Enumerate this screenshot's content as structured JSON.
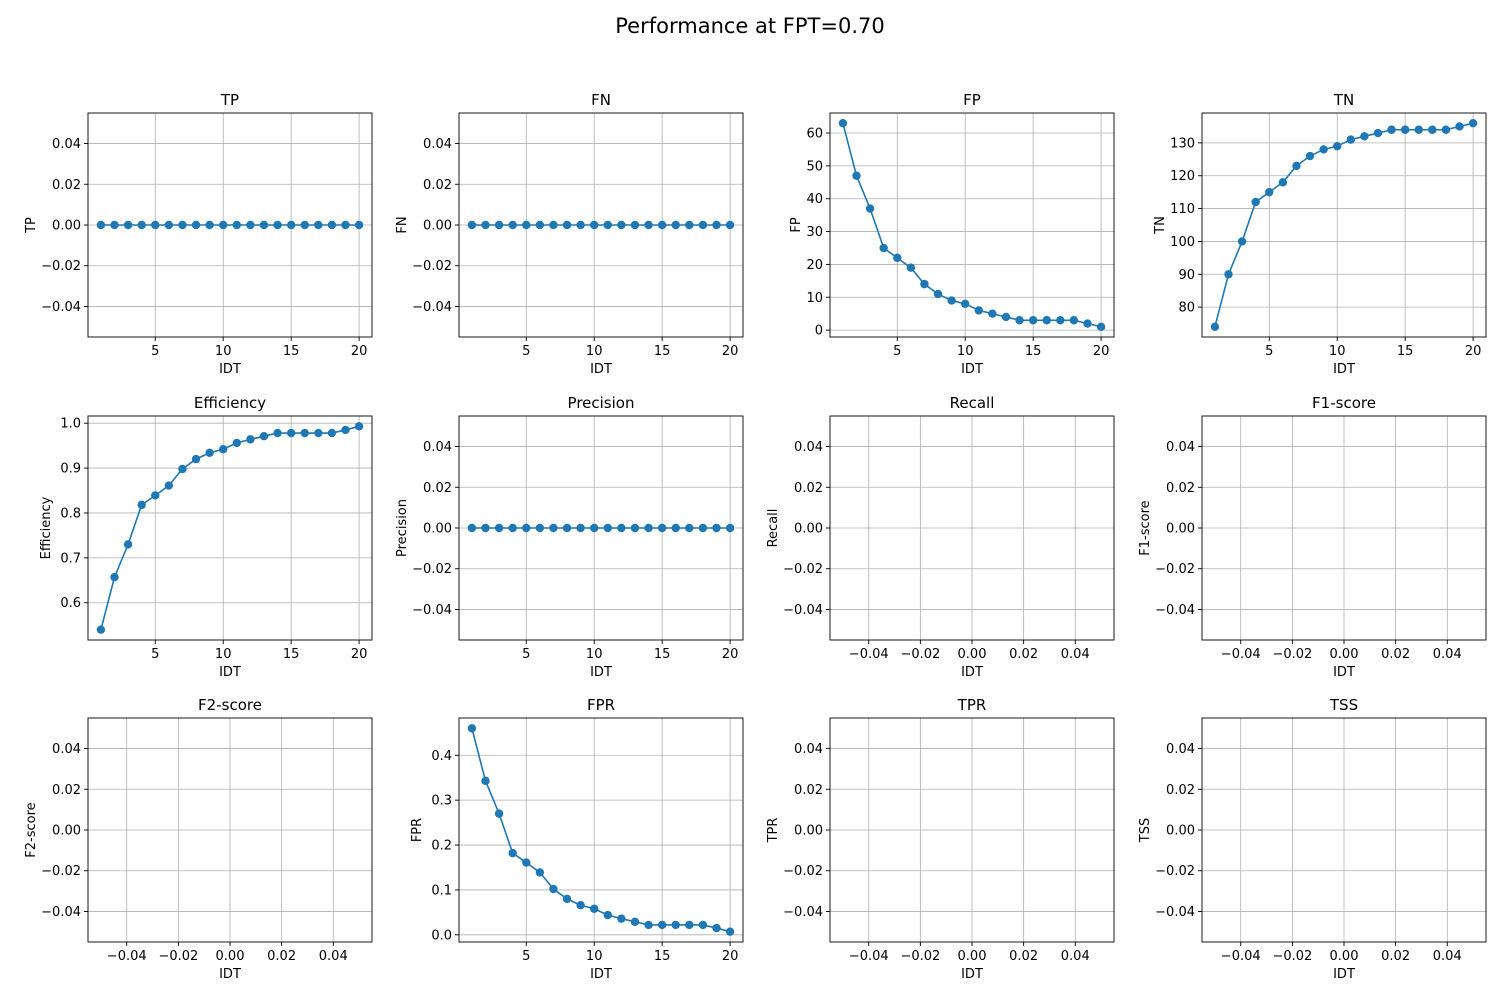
{
  "figure": {
    "suptitle": "Performance at FPT=0.70"
  },
  "style": {
    "line_color": "#1f77b4",
    "grid_color": "#b0b0b0"
  },
  "chart_data": [
    {
      "type": "line",
      "title": "TP",
      "xlabel": "IDT",
      "ylabel": "TP",
      "x": [
        1,
        2,
        3,
        4,
        5,
        6,
        7,
        8,
        9,
        10,
        11,
        12,
        13,
        14,
        15,
        16,
        17,
        18,
        19,
        20
      ],
      "series": [
        {
          "values": [
            0,
            0,
            0,
            0,
            0,
            0,
            0,
            0,
            0,
            0,
            0,
            0,
            0,
            0,
            0,
            0,
            0,
            0,
            0,
            0
          ]
        }
      ],
      "xlim": [
        0.05,
        20.95
      ],
      "ylim": [
        -0.055,
        0.055
      ],
      "xticks": [
        5,
        10,
        15,
        20
      ],
      "xtick_labels": [
        "5",
        "10",
        "15",
        "20"
      ],
      "yticks": [
        -0.04,
        -0.02,
        0,
        0.02,
        0.04
      ],
      "ytick_labels": [
        "−0.04",
        "−0.02",
        "0.00",
        "0.02",
        "0.04"
      ],
      "grid": true
    },
    {
      "type": "line",
      "title": "FN",
      "xlabel": "IDT",
      "ylabel": "FN",
      "x": [
        1,
        2,
        3,
        4,
        5,
        6,
        7,
        8,
        9,
        10,
        11,
        12,
        13,
        14,
        15,
        16,
        17,
        18,
        19,
        20
      ],
      "series": [
        {
          "values": [
            0,
            0,
            0,
            0,
            0,
            0,
            0,
            0,
            0,
            0,
            0,
            0,
            0,
            0,
            0,
            0,
            0,
            0,
            0,
            0
          ]
        }
      ],
      "xlim": [
        0.05,
        20.95
      ],
      "ylim": [
        -0.055,
        0.055
      ],
      "xticks": [
        5,
        10,
        15,
        20
      ],
      "xtick_labels": [
        "5",
        "10",
        "15",
        "20"
      ],
      "yticks": [
        -0.04,
        -0.02,
        0,
        0.02,
        0.04
      ],
      "ytick_labels": [
        "−0.04",
        "−0.02",
        "0.00",
        "0.02",
        "0.04"
      ],
      "grid": true
    },
    {
      "type": "line",
      "title": "FP",
      "xlabel": "IDT",
      "ylabel": "FP",
      "x": [
        1,
        2,
        3,
        4,
        5,
        6,
        7,
        8,
        9,
        10,
        11,
        12,
        13,
        14,
        15,
        16,
        17,
        18,
        19,
        20
      ],
      "series": [
        {
          "values": [
            63,
            47,
            37,
            25,
            22,
            19,
            14,
            11,
            9,
            8,
            6,
            5,
            4,
            3,
            3,
            3,
            3,
            3,
            2,
            1
          ]
        }
      ],
      "xlim": [
        0.05,
        20.95
      ],
      "ylim": [
        -2.1,
        66.1
      ],
      "xticks": [
        5,
        10,
        15,
        20
      ],
      "xtick_labels": [
        "5",
        "10",
        "15",
        "20"
      ],
      "yticks": [
        0,
        10,
        20,
        30,
        40,
        50,
        60
      ],
      "ytick_labels": [
        "0",
        "10",
        "20",
        "30",
        "40",
        "50",
        "60"
      ],
      "grid": true
    },
    {
      "type": "line",
      "title": "TN",
      "xlabel": "IDT",
      "ylabel": "TN",
      "x": [
        1,
        2,
        3,
        4,
        5,
        6,
        7,
        8,
        9,
        10,
        11,
        12,
        13,
        14,
        15,
        16,
        17,
        18,
        19,
        20
      ],
      "series": [
        {
          "values": [
            74,
            90,
            100,
            112,
            115,
            118,
            123,
            126,
            128,
            129,
            131,
            132,
            133,
            134,
            134,
            134,
            134,
            134,
            135,
            136
          ]
        }
      ],
      "xlim": [
        0.05,
        20.95
      ],
      "ylim": [
        70.9,
        139.1
      ],
      "xticks": [
        5,
        10,
        15,
        20
      ],
      "xtick_labels": [
        "5",
        "10",
        "15",
        "20"
      ],
      "yticks": [
        80,
        90,
        100,
        110,
        120,
        130
      ],
      "ytick_labels": [
        "80",
        "90",
        "100",
        "110",
        "120",
        "130"
      ],
      "grid": true
    },
    {
      "type": "line",
      "title": "Efficiency",
      "xlabel": "IDT",
      "ylabel": "Efficiency",
      "x": [
        1,
        2,
        3,
        4,
        5,
        6,
        7,
        8,
        9,
        10,
        11,
        12,
        13,
        14,
        15,
        16,
        17,
        18,
        19,
        20
      ],
      "series": [
        {
          "values": [
            0.54,
            0.657,
            0.73,
            0.818,
            0.839,
            0.861,
            0.898,
            0.92,
            0.934,
            0.942,
            0.956,
            0.964,
            0.971,
            0.978,
            0.978,
            0.978,
            0.978,
            0.978,
            0.985,
            0.993
          ]
        }
      ],
      "xlim": [
        0.05,
        20.95
      ],
      "ylim": [
        0.517,
        1.016
      ],
      "xticks": [
        5,
        10,
        15,
        20
      ],
      "xtick_labels": [
        "5",
        "10",
        "15",
        "20"
      ],
      "yticks": [
        0.6,
        0.7,
        0.8,
        0.9,
        1.0
      ],
      "ytick_labels": [
        "0.6",
        "0.7",
        "0.8",
        "0.9",
        "1.0"
      ],
      "grid": true
    },
    {
      "type": "line",
      "title": "Precision",
      "xlabel": "IDT",
      "ylabel": "Precision",
      "x": [
        1,
        2,
        3,
        4,
        5,
        6,
        7,
        8,
        9,
        10,
        11,
        12,
        13,
        14,
        15,
        16,
        17,
        18,
        19,
        20
      ],
      "series": [
        {
          "values": [
            0,
            0,
            0,
            0,
            0,
            0,
            0,
            0,
            0,
            0,
            0,
            0,
            0,
            0,
            0,
            0,
            0,
            0,
            0,
            0
          ]
        }
      ],
      "xlim": [
        0.05,
        20.95
      ],
      "ylim": [
        -0.055,
        0.055
      ],
      "xticks": [
        5,
        10,
        15,
        20
      ],
      "xtick_labels": [
        "5",
        "10",
        "15",
        "20"
      ],
      "yticks": [
        -0.04,
        -0.02,
        0,
        0.02,
        0.04
      ],
      "ytick_labels": [
        "−0.04",
        "−0.02",
        "0.00",
        "0.02",
        "0.04"
      ],
      "grid": true
    },
    {
      "type": "line",
      "title": "Recall",
      "xlabel": "IDT",
      "ylabel": "Recall",
      "x": [],
      "series": [
        {
          "values": []
        }
      ],
      "xlim": [
        -0.055,
        0.055
      ],
      "ylim": [
        -0.055,
        0.055
      ],
      "xticks": [
        -0.04,
        -0.02,
        0,
        0.02,
        0.04
      ],
      "xtick_labels": [
        "−0.04",
        "−0.02",
        "0.00",
        "0.02",
        "0.04"
      ],
      "yticks": [
        -0.04,
        -0.02,
        0,
        0.02,
        0.04
      ],
      "ytick_labels": [
        "−0.04",
        "−0.02",
        "0.00",
        "0.02",
        "0.04"
      ],
      "grid": true
    },
    {
      "type": "line",
      "title": "F1-score",
      "xlabel": "IDT",
      "ylabel": "F1-score",
      "x": [],
      "series": [
        {
          "values": []
        }
      ],
      "xlim": [
        -0.055,
        0.055
      ],
      "ylim": [
        -0.055,
        0.055
      ],
      "xticks": [
        -0.04,
        -0.02,
        0,
        0.02,
        0.04
      ],
      "xtick_labels": [
        "−0.04",
        "−0.02",
        "0.00",
        "0.02",
        "0.04"
      ],
      "yticks": [
        -0.04,
        -0.02,
        0,
        0.02,
        0.04
      ],
      "ytick_labels": [
        "−0.04",
        "−0.02",
        "0.00",
        "0.02",
        "0.04"
      ],
      "grid": true
    },
    {
      "type": "line",
      "title": "F2-score",
      "xlabel": "IDT",
      "ylabel": "F2-score",
      "x": [],
      "series": [
        {
          "values": []
        }
      ],
      "xlim": [
        -0.055,
        0.055
      ],
      "ylim": [
        -0.055,
        0.055
      ],
      "xticks": [
        -0.04,
        -0.02,
        0,
        0.02,
        0.04
      ],
      "xtick_labels": [
        "−0.04",
        "−0.02",
        "0.00",
        "0.02",
        "0.04"
      ],
      "yticks": [
        -0.04,
        -0.02,
        0,
        0.02,
        0.04
      ],
      "ytick_labels": [
        "−0.04",
        "−0.02",
        "0.00",
        "0.02",
        "0.04"
      ],
      "grid": true
    },
    {
      "type": "line",
      "title": "FPR",
      "xlabel": "IDT",
      "ylabel": "FPR",
      "x": [
        1,
        2,
        3,
        4,
        5,
        6,
        7,
        8,
        9,
        10,
        11,
        12,
        13,
        14,
        15,
        16,
        17,
        18,
        19,
        20
      ],
      "series": [
        {
          "values": [
            0.46,
            0.343,
            0.27,
            0.182,
            0.161,
            0.139,
            0.102,
            0.08,
            0.066,
            0.058,
            0.044,
            0.036,
            0.029,
            0.022,
            0.022,
            0.022,
            0.022,
            0.022,
            0.015,
            0.007
          ]
        }
      ],
      "xlim": [
        0.05,
        20.95
      ],
      "ylim": [
        -0.016,
        0.483
      ],
      "xticks": [
        5,
        10,
        15,
        20
      ],
      "xtick_labels": [
        "5",
        "10",
        "15",
        "20"
      ],
      "yticks": [
        0,
        0.1,
        0.2,
        0.3,
        0.4
      ],
      "ytick_labels": [
        "0.0",
        "0.1",
        "0.2",
        "0.3",
        "0.4"
      ],
      "grid": true
    },
    {
      "type": "line",
      "title": "TPR",
      "xlabel": "IDT",
      "ylabel": "TPR",
      "x": [],
      "series": [
        {
          "values": []
        }
      ],
      "xlim": [
        -0.055,
        0.055
      ],
      "ylim": [
        -0.055,
        0.055
      ],
      "xticks": [
        -0.04,
        -0.02,
        0,
        0.02,
        0.04
      ],
      "xtick_labels": [
        "−0.04",
        "−0.02",
        "0.00",
        "0.02",
        "0.04"
      ],
      "yticks": [
        -0.04,
        -0.02,
        0,
        0.02,
        0.04
      ],
      "ytick_labels": [
        "−0.04",
        "−0.02",
        "0.00",
        "0.02",
        "0.04"
      ],
      "grid": true
    },
    {
      "type": "line",
      "title": "TSS",
      "xlabel": "IDT",
      "ylabel": "TSS",
      "x": [],
      "series": [
        {
          "values": []
        }
      ],
      "xlim": [
        -0.055,
        0.055
      ],
      "ylim": [
        -0.055,
        0.055
      ],
      "xticks": [
        -0.04,
        -0.02,
        0,
        0.02,
        0.04
      ],
      "xtick_labels": [
        "−0.04",
        "−0.02",
        "0.00",
        "0.02",
        "0.04"
      ],
      "yticks": [
        -0.04,
        -0.02,
        0,
        0.02,
        0.04
      ],
      "ytick_labels": [
        "−0.04",
        "−0.02",
        "0.00",
        "0.02",
        "0.04"
      ],
      "grid": true
    }
  ]
}
